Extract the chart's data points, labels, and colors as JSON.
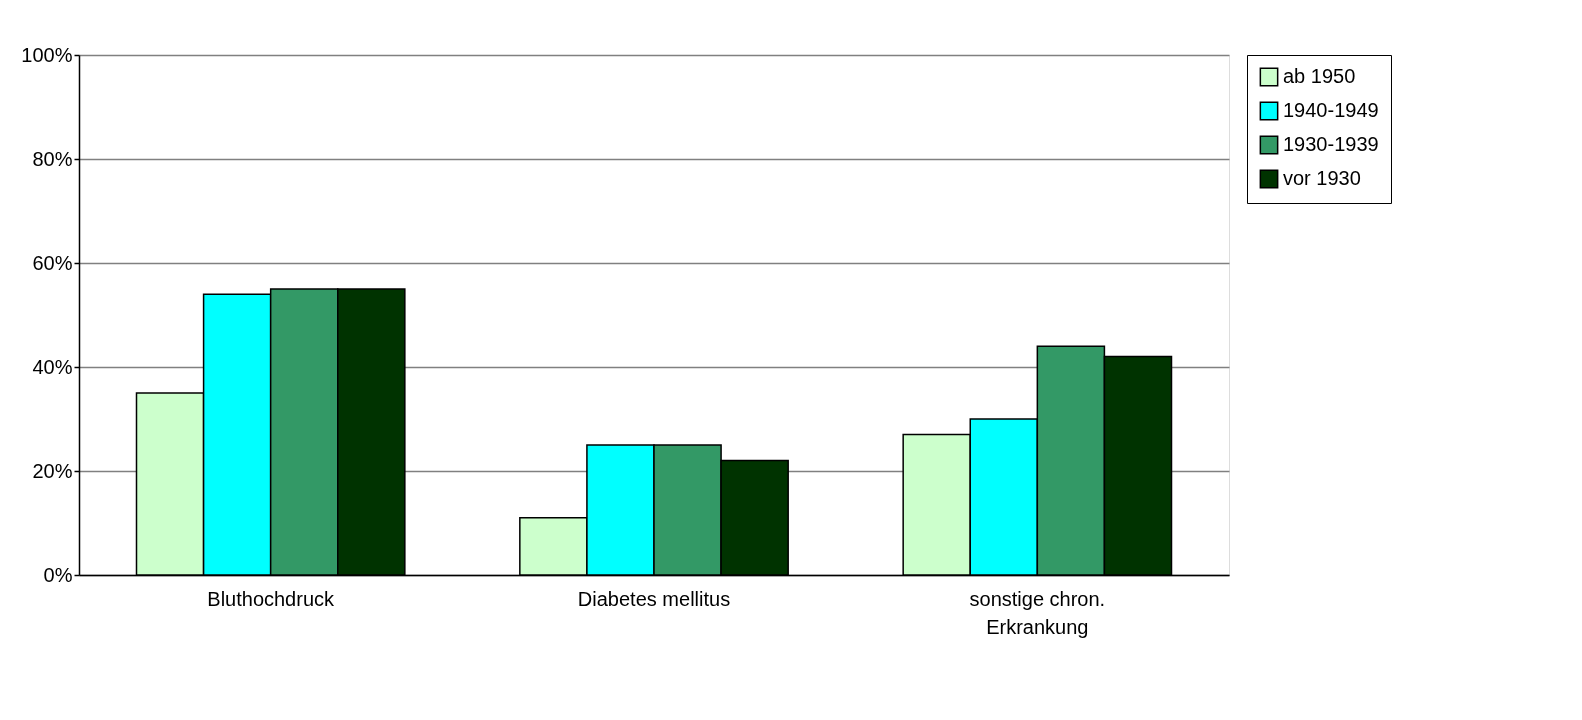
{
  "chart_data": {
    "type": "bar",
    "categories": [
      "Bluthochdruck",
      "Diabetes mellitus",
      "sonstige chron. Erkrankung"
    ],
    "series": [
      {
        "name": "ab 1950",
        "color": "#ccffcc",
        "values": [
          35,
          11,
          27
        ]
      },
      {
        "name": "1940-1949",
        "color": "#00ffff",
        "values": [
          54,
          25,
          30
        ]
      },
      {
        "name": "1930-1939",
        "color": "#339966",
        "values": [
          55,
          25,
          44
        ]
      },
      {
        "name": "vor 1930",
        "color": "#003300",
        "values": [
          55,
          22,
          42
        ]
      }
    ],
    "ylim": [
      0,
      100
    ],
    "yticks": [
      {
        "value": 0,
        "label": "0%"
      },
      {
        "value": 20,
        "label": "20%"
      },
      {
        "value": 40,
        "label": "40%"
      },
      {
        "value": 60,
        "label": "60%"
      },
      {
        "value": 80,
        "label": "80%"
      },
      {
        "value": 100,
        "label": "100%"
      }
    ],
    "grid": "y",
    "legend": "right"
  }
}
